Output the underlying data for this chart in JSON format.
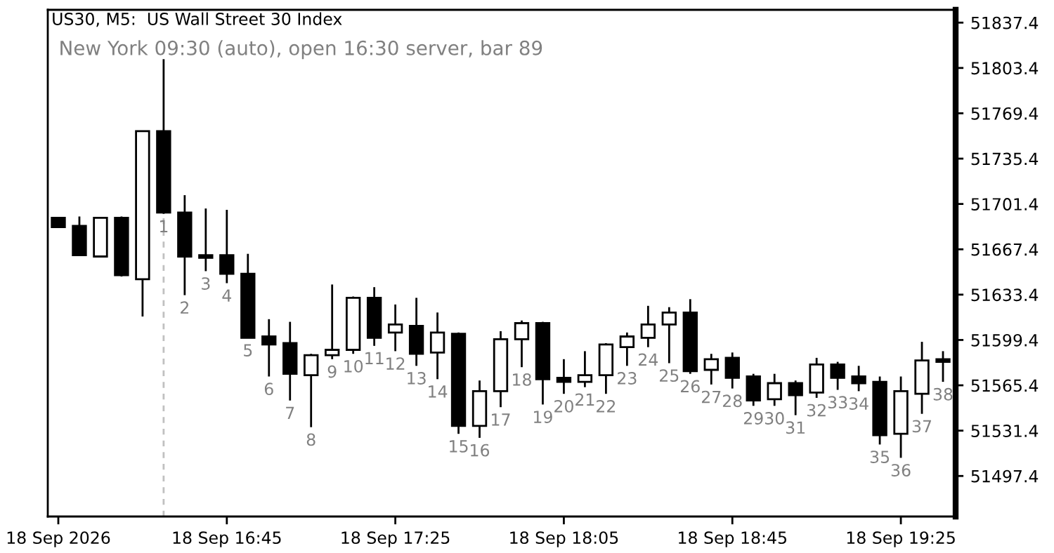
{
  "chart_data": {
    "type": "candlestick",
    "title": "US30, M5:  US Wall Street 30 Index",
    "subtitle": "New York 09:30 (auto), open 16:30 server, bar 89",
    "categories": [
      "18 Sep 2026",
      null,
      null,
      null,
      null,
      null,
      null,
      null,
      "18 Sep 16:45",
      null,
      null,
      null,
      null,
      null,
      null,
      null,
      "18 Sep 17:25",
      null,
      null,
      null,
      null,
      null,
      null,
      null,
      "18 Sep 18:05",
      null,
      null,
      null,
      null,
      null,
      null,
      null,
      "18 Sep 18:45",
      null,
      null,
      null,
      null,
      null,
      null,
      null,
      "18 Sep 19:25",
      null,
      null
    ],
    "ohlc": [
      [
        51691,
        51691,
        51684,
        51684
      ],
      [
        51685,
        51692,
        51663,
        51663
      ],
      [
        51662,
        51691,
        51662,
        51691
      ],
      [
        51691,
        51692,
        51647,
        51648
      ],
      [
        51645,
        51756,
        51617,
        51756
      ],
      [
        51756,
        51810,
        51694,
        51695
      ],
      [
        51695,
        51708,
        51633,
        51662
      ],
      [
        51663,
        51698,
        51651,
        51661
      ],
      [
        51663,
        51697,
        51642,
        51649
      ],
      [
        51649,
        51664,
        51601,
        51601
      ],
      [
        51602,
        51615,
        51572,
        51596
      ],
      [
        51597,
        51613,
        51554,
        51574
      ],
      [
        51573,
        51589,
        51534,
        51588
      ],
      [
        51588,
        51641,
        51585,
        51592
      ],
      [
        51592,
        51632,
        51589,
        51631
      ],
      [
        51631,
        51639,
        51595,
        51601
      ],
      [
        51605,
        51626,
        51591,
        51611
      ],
      [
        51610,
        51631,
        51580,
        51589
      ],
      [
        51590,
        51620,
        51570,
        51605
      ],
      [
        51604,
        51605,
        51529,
        51535
      ],
      [
        51535,
        51569,
        51526,
        51561
      ],
      [
        51561,
        51606,
        51549,
        51600
      ],
      [
        51600,
        51614,
        51579,
        51612
      ],
      [
        51612,
        51613,
        51551,
        51570
      ],
      [
        51571,
        51585,
        51559,
        51568
      ],
      [
        51568,
        51591,
        51564,
        51573
      ],
      [
        51573,
        51597,
        51559,
        51596
      ],
      [
        51594,
        51605,
        51580,
        51602
      ],
      [
        51601,
        51625,
        51594,
        51611
      ],
      [
        51611,
        51624,
        51582,
        51620
      ],
      [
        51620,
        51630,
        51574,
        51576
      ],
      [
        51577,
        51589,
        51566,
        51585
      ],
      [
        51586,
        51590,
        51563,
        51571
      ],
      [
        51572,
        51574,
        51550,
        51554
      ],
      [
        51555,
        51574,
        51550,
        51567
      ],
      [
        51567,
        51569,
        51543,
        51558
      ],
      [
        51560,
        51586,
        51556,
        51581
      ],
      [
        51581,
        51583,
        51562,
        51571
      ],
      [
        51572,
        51580,
        51561,
        51567
      ],
      [
        51568,
        51572,
        51521,
        51528
      ],
      [
        51529,
        51572,
        51511,
        51561
      ],
      [
        51559,
        51598,
        51544,
        51584
      ],
      [
        51585,
        51591,
        51568,
        51583
      ]
    ],
    "value_labels": [
      null,
      null,
      null,
      null,
      null,
      "1",
      "2",
      "3",
      "4",
      "5",
      "6",
      "7",
      "8",
      "9",
      "10",
      "11",
      "12",
      "13",
      "14",
      "15",
      "16",
      "17",
      "18",
      "19",
      "20",
      "21",
      "22",
      "23",
      "24",
      "25",
      "26",
      "27",
      "28",
      "29",
      "30",
      "31",
      "32",
      "33",
      "34",
      "35",
      "36",
      "37",
      "38"
    ],
    "ylim": [
      51467,
      51847
    ],
    "yticks": [
      51497.4,
      51531.4,
      51565.4,
      51599.4,
      51633.4,
      51667.4,
      51701.4,
      51735.4,
      51769.4,
      51803.4,
      51837.4
    ],
    "grid": false
  }
}
